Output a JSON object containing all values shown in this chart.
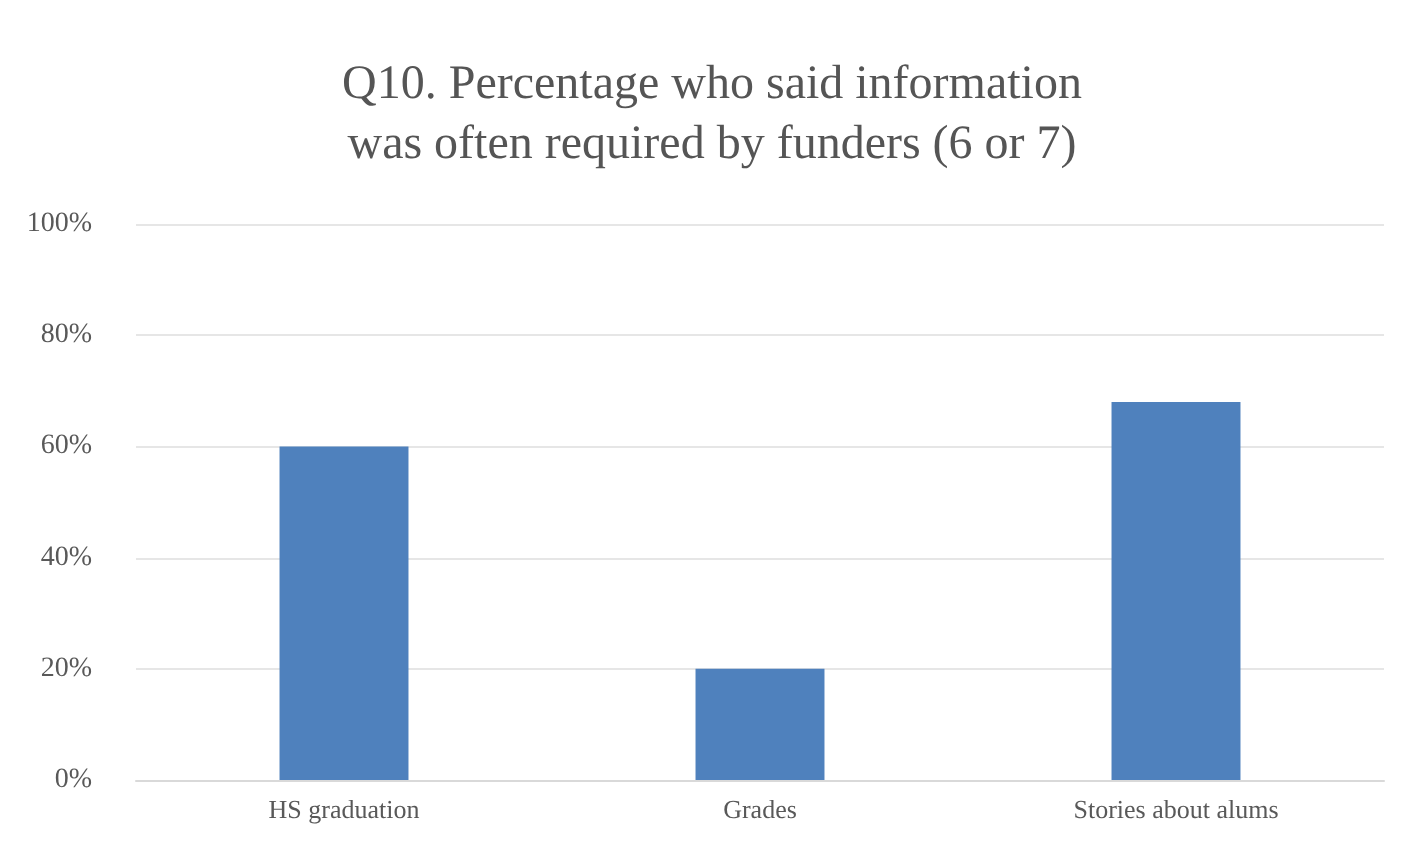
{
  "chart_data": {
    "type": "bar",
    "title": "Q10. Percentage who said information\nwas often required by funders (6 or 7)",
    "categories": [
      "HS graduation",
      "Grades",
      "Stories about alums"
    ],
    "values": [
      60,
      20,
      68
    ],
    "color": "#4f81bd",
    "ylim": [
      0,
      100
    ],
    "yticks": [
      {
        "value": 0,
        "label": "0%"
      },
      {
        "value": 20,
        "label": "20%"
      },
      {
        "value": 40,
        "label": "40%"
      },
      {
        "value": 60,
        "label": "60%"
      },
      {
        "value": 80,
        "label": "80%"
      },
      {
        "value": 100,
        "label": "100%"
      }
    ],
    "grid": true
  }
}
